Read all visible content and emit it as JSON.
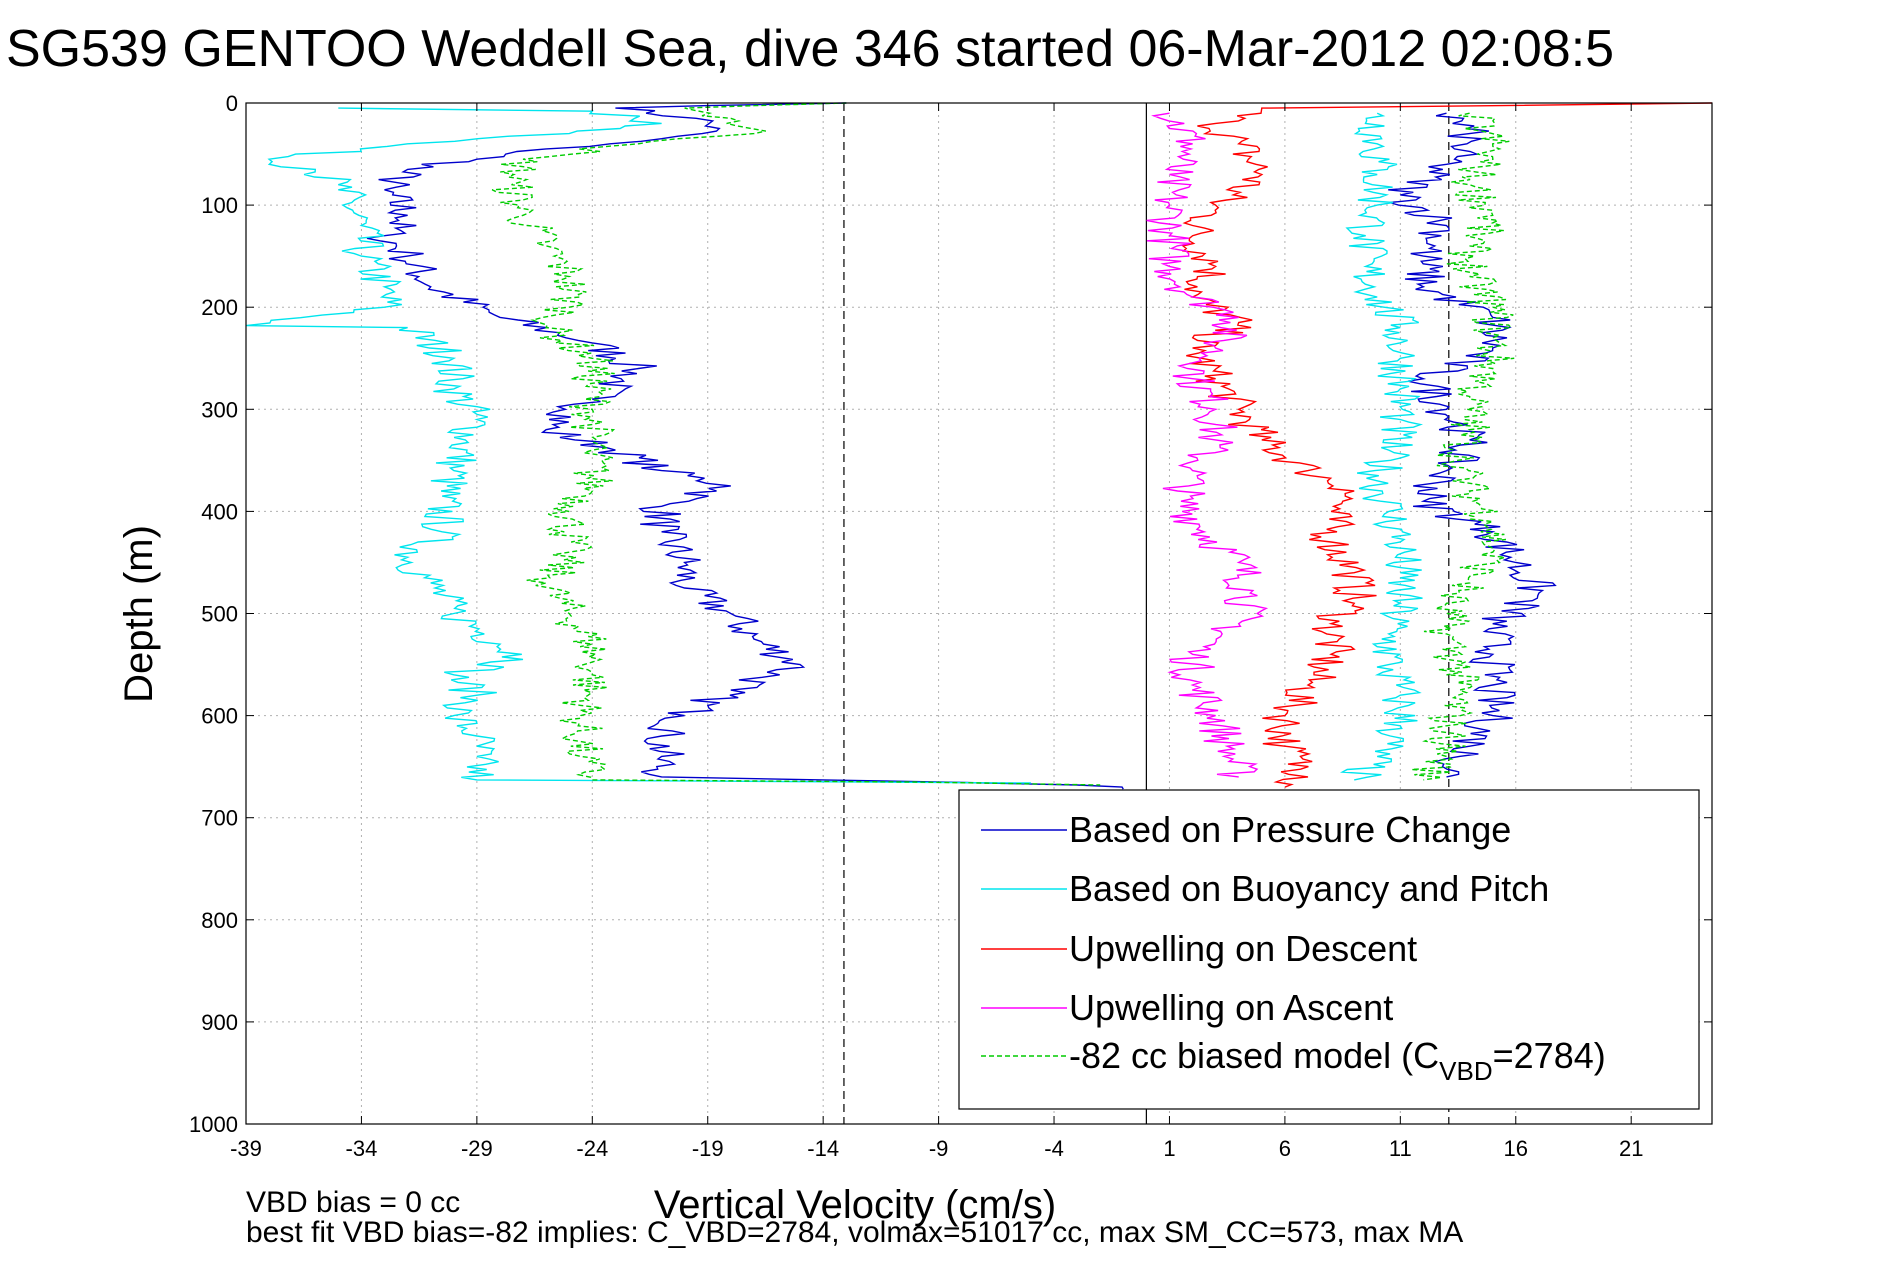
{
  "title": "SG539 GENTOO Weddell Sea, dive 346 started 06-Mar-2012 02:08:5",
  "footer": {
    "line1": "VBD bias = 0 cc",
    "line2": "best fit VBD bias=-82 implies: C_VBD=2784, volmax=51017 cc, max SM_CC=573, max MA"
  },
  "colors": {
    "pressure": "#0000cc",
    "buoyancy": "#00e5ee",
    "descent": "#ff0000",
    "ascent": "#ff00ff",
    "model": "#00cc00",
    "grid": "#b0b0b0",
    "axis": "#000000"
  },
  "chart_data": {
    "type": "line",
    "title": "SG539 GENTOO Weddell Sea, dive 346 started 06-Mar-2012 02:08:5",
    "xlabel": "Vertical Velocity (cm/s)",
    "ylabel": "Depth (m)",
    "xlim": [
      -39,
      24.5
    ],
    "ylim": [
      0,
      1000
    ],
    "y_reversed": true,
    "grid": true,
    "legend_position": "bottom-right",
    "x_ticks": [
      -39,
      -34,
      -29,
      -24,
      -19,
      -14,
      -9,
      -4,
      1,
      6,
      11,
      16,
      21
    ],
    "y_ticks": [
      0,
      100,
      200,
      300,
      400,
      500,
      600,
      700,
      800,
      900,
      1000
    ],
    "vertical_lines": [
      {
        "x": -13.1,
        "style": "dashed"
      },
      {
        "x": 0.0,
        "style": "solid"
      },
      {
        "x": 13.1,
        "style": "dashed"
      }
    ],
    "series": [
      {
        "name": "Based on Pressure Change",
        "color": "#0000cc",
        "style": "solid",
        "points": [
          [
            -13,
            0
          ],
          [
            -23,
            5
          ],
          [
            -19.5,
            15
          ],
          [
            -18.5,
            25
          ],
          [
            -21,
            35
          ],
          [
            -26,
            45
          ],
          [
            -29,
            55
          ],
          [
            -32,
            65
          ],
          [
            -33,
            85
          ],
          [
            -32,
            110
          ],
          [
            -33,
            130
          ],
          [
            -32,
            150
          ],
          [
            -31,
            180
          ],
          [
            -28,
            210
          ],
          [
            -24,
            235
          ],
          [
            -22,
            260
          ],
          [
            -24,
            290
          ],
          [
            -26,
            320
          ],
          [
            -23,
            340
          ],
          [
            -21,
            360
          ],
          [
            -18,
            375
          ],
          [
            -21,
            395
          ],
          [
            -21,
            420
          ],
          [
            -20,
            450
          ],
          [
            -20,
            475
          ],
          [
            -18,
            500
          ],
          [
            -17,
            525
          ],
          [
            -15,
            550
          ],
          [
            -18,
            575
          ],
          [
            -20,
            600
          ],
          [
            -21,
            620
          ],
          [
            -21,
            640
          ],
          [
            -21,
            660
          ],
          [
            -14,
            663
          ],
          [
            -3,
            668
          ],
          [
            -1,
            672
          ]
        ]
      },
      {
        "name": "Based on Buoyancy and Pitch",
        "color": "#00e5ee",
        "style": "solid",
        "points": [
          [
            -35,
            5
          ],
          [
            -24,
            8
          ],
          [
            -21,
            20
          ],
          [
            -25,
            30
          ],
          [
            -32,
            40
          ],
          [
            -38,
            55
          ],
          [
            -36,
            65
          ],
          [
            -35,
            80
          ],
          [
            -34,
            120
          ],
          [
            -34,
            150
          ],
          [
            -33,
            180
          ],
          [
            -33,
            200
          ],
          [
            -39,
            218
          ],
          [
            -32,
            220
          ],
          [
            -30,
            250
          ],
          [
            -30,
            280
          ],
          [
            -29,
            310
          ],
          [
            -29.5,
            330
          ],
          [
            -30,
            360
          ],
          [
            -30.5,
            385
          ],
          [
            -30.5,
            420
          ],
          [
            -32,
            445
          ],
          [
            -31,
            470
          ],
          [
            -30,
            500
          ],
          [
            -28,
            530
          ],
          [
            -27,
            545
          ],
          [
            -30,
            560
          ],
          [
            -29,
            580
          ],
          [
            -30,
            600
          ],
          [
            -29,
            620
          ],
          [
            -29,
            640
          ],
          [
            -29,
            663
          ],
          [
            -20,
            664
          ],
          [
            -5,
            666
          ]
        ]
      },
      {
        "name": "Upwelling on Descent",
        "color": "#ff0000",
        "style": "solid",
        "points": [
          [
            24.5,
            0
          ],
          [
            5,
            5
          ],
          [
            3,
            20
          ],
          [
            4,
            40
          ],
          [
            5,
            70
          ],
          [
            3,
            100
          ],
          [
            2,
            130
          ],
          [
            3,
            160
          ],
          [
            2,
            190
          ],
          [
            4,
            215
          ],
          [
            2,
            240
          ],
          [
            3,
            270
          ],
          [
            4,
            300
          ],
          [
            5,
            330
          ],
          [
            7,
            360
          ],
          [
            9,
            380
          ],
          [
            8,
            400
          ],
          [
            8,
            430
          ],
          [
            9,
            460
          ],
          [
            9,
            490
          ],
          [
            8,
            510
          ],
          [
            8,
            540
          ],
          [
            7,
            570
          ],
          [
            6,
            600
          ],
          [
            6,
            630
          ],
          [
            7,
            660
          ],
          [
            6,
            670
          ]
        ]
      },
      {
        "name": "Upwelling on Ascent",
        "color": "#ff00ff",
        "style": "solid",
        "points": [
          [
            1,
            10
          ],
          [
            2,
            40
          ],
          [
            1,
            70
          ],
          [
            1,
            100
          ],
          [
            1,
            130
          ],
          [
            1,
            160
          ],
          [
            2,
            190
          ],
          [
            4,
            210
          ],
          [
            3,
            240
          ],
          [
            2,
            270
          ],
          [
            3,
            300
          ],
          [
            3,
            330
          ],
          [
            2,
            360
          ],
          [
            1.5,
            390
          ],
          [
            2.5,
            420
          ],
          [
            4,
            450
          ],
          [
            4.5,
            480
          ],
          [
            4,
            510
          ],
          [
            2,
            540
          ],
          [
            2,
            570
          ],
          [
            3,
            600
          ],
          [
            3.5,
            630
          ],
          [
            4,
            660
          ]
        ]
      },
      {
        "name": "-82 cc biased model (C_VBD=2784)",
        "color": "#00cc00",
        "style": "dashed",
        "points": [
          [
            -13,
            0
          ],
          [
            -20,
            5
          ],
          [
            -18,
            15
          ],
          [
            -17,
            30
          ],
          [
            -22,
            40
          ],
          [
            -27,
            55
          ],
          [
            -27.5,
            80
          ],
          [
            -27,
            110
          ],
          [
            -26,
            140
          ],
          [
            -25,
            170
          ],
          [
            -25,
            200
          ],
          [
            -26,
            220
          ],
          [
            -24,
            250
          ],
          [
            -24,
            300
          ],
          [
            -24,
            340
          ],
          [
            -24,
            380
          ],
          [
            -25,
            400
          ],
          [
            -25,
            440
          ],
          [
            -26,
            470
          ],
          [
            -25,
            500
          ],
          [
            -24,
            530
          ],
          [
            -24,
            560
          ],
          [
            -24.5,
            600
          ],
          [
            -24.5,
            640
          ],
          [
            -24,
            663
          ],
          [
            -10,
            665
          ],
          [
            -2,
            668
          ]
        ]
      },
      {
        "name": "Based on Pressure Change",
        "color": "#0000cc",
        "style": "solid",
        "points": [
          [
            13,
            10
          ],
          [
            14,
            30
          ],
          [
            13,
            60
          ],
          [
            11,
            90
          ],
          [
            13,
            120
          ],
          [
            12,
            150
          ],
          [
            12,
            180
          ],
          [
            15,
            210
          ],
          [
            15,
            240
          ],
          [
            12,
            270
          ],
          [
            13,
            300
          ],
          [
            14,
            330
          ],
          [
            13,
            360
          ],
          [
            12,
            390
          ],
          [
            15,
            420
          ],
          [
            16,
            450
          ],
          [
            17,
            480
          ],
          [
            15,
            510
          ],
          [
            15,
            540
          ],
          [
            15,
            570
          ],
          [
            15,
            600
          ],
          [
            14,
            630
          ],
          [
            13,
            660
          ]
        ]
      },
      {
        "name": "Based on Buoyancy and Pitch",
        "color": "#00e5ee",
        "style": "solid",
        "points": [
          [
            10,
            10
          ],
          [
            10,
            40
          ],
          [
            10,
            70
          ],
          [
            10,
            100
          ],
          [
            9.5,
            130
          ],
          [
            9.5,
            160
          ],
          [
            10,
            190
          ],
          [
            11,
            220
          ],
          [
            11,
            250
          ],
          [
            11,
            280
          ],
          [
            11,
            310
          ],
          [
            10.5,
            340
          ],
          [
            10,
            370
          ],
          [
            10.5,
            400
          ],
          [
            11,
            430
          ],
          [
            11,
            460
          ],
          [
            11,
            490
          ],
          [
            10.5,
            520
          ],
          [
            10.5,
            550
          ],
          [
            11,
            580
          ],
          [
            11,
            610
          ],
          [
            10,
            640
          ],
          [
            9,
            663
          ]
        ]
      },
      {
        "name": "-82 cc biased model (C_VBD=2784)",
        "color": "#00cc00",
        "style": "dashed",
        "points": [
          [
            14,
            10
          ],
          [
            15,
            40
          ],
          [
            14,
            80
          ],
          [
            15,
            110
          ],
          [
            14,
            140
          ],
          [
            14,
            170
          ],
          [
            15,
            200
          ],
          [
            15,
            230
          ],
          [
            15,
            260
          ],
          [
            14,
            290
          ],
          [
            14,
            320
          ],
          [
            13.5,
            350
          ],
          [
            14,
            380
          ],
          [
            15,
            410
          ],
          [
            15,
            440
          ],
          [
            14,
            470
          ],
          [
            13,
            490
          ],
          [
            13,
            520
          ],
          [
            13.5,
            550
          ],
          [
            13.5,
            580
          ],
          [
            13,
            610
          ],
          [
            13,
            640
          ],
          [
            12,
            663
          ]
        ]
      }
    ],
    "legend": [
      {
        "label": "Based on Pressure Change",
        "color": "#0000cc",
        "style": "solid"
      },
      {
        "label": "Based on Buoyancy and Pitch",
        "color": "#00e5ee",
        "style": "solid"
      },
      {
        "label": "Upwelling on Descent",
        "color": "#ff0000",
        "style": "solid"
      },
      {
        "label": "Upwelling on Ascent",
        "color": "#ff00ff",
        "style": "solid"
      },
      {
        "label": "-82 cc biased model (C",
        "sub": "VBD",
        "suffix": "=2784)",
        "color": "#00cc00",
        "style": "dashed"
      }
    ]
  }
}
